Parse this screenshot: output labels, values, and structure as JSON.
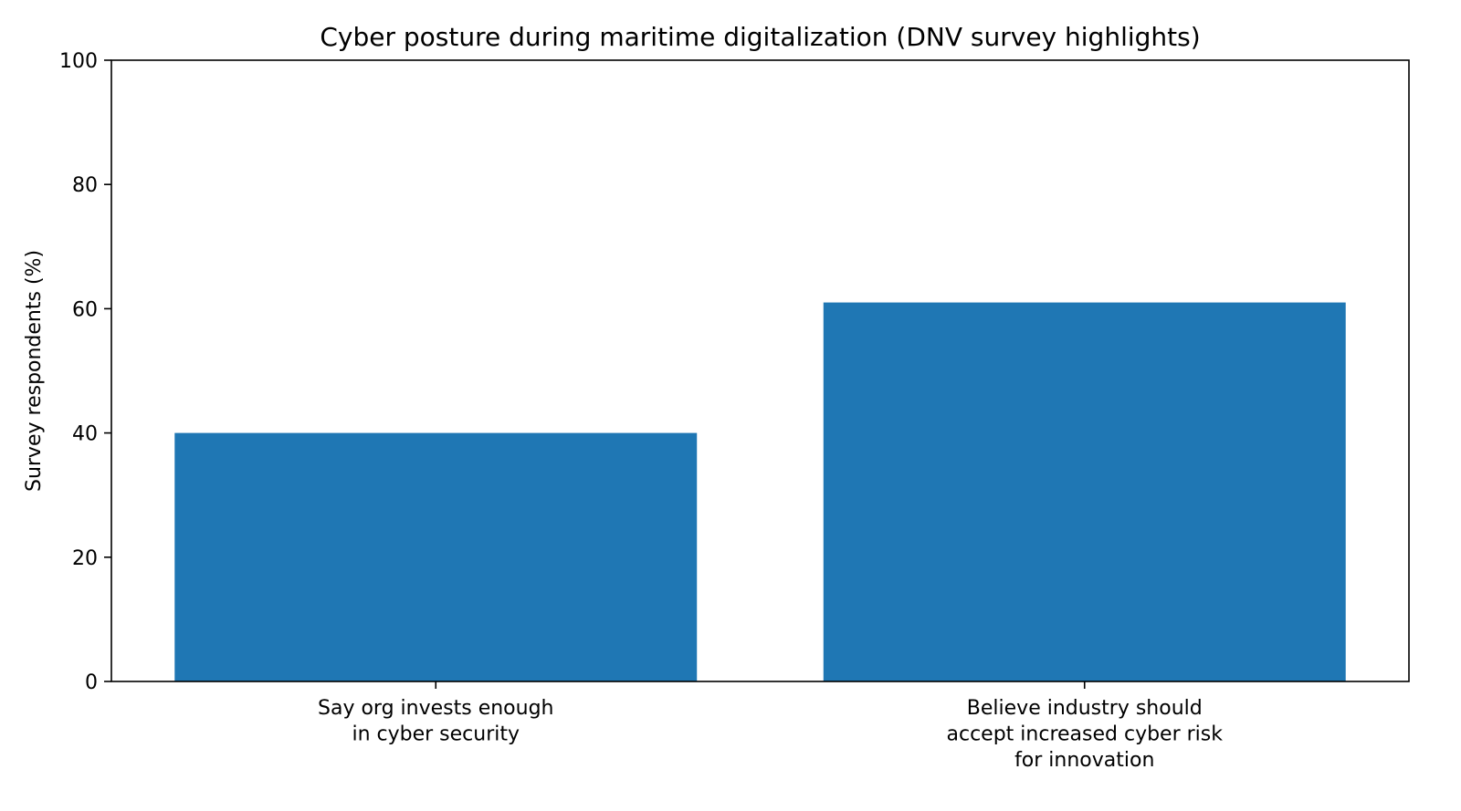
{
  "chart_data": {
    "type": "bar",
    "title": "Cyber posture during maritime digitalization (DNV survey highlights)",
    "xlabel": "",
    "ylabel": "Survey respondents (%)",
    "ylim": [
      0,
      100
    ],
    "yticks": [
      0,
      20,
      40,
      60,
      80,
      100
    ],
    "categories": [
      [
        "Say org invests enough",
        "in cyber security"
      ],
      [
        "Believe industry should",
        "accept increased cyber risk",
        "for innovation"
      ]
    ],
    "values": [
      40,
      61
    ],
    "bar_color": "#1f77b4",
    "grid": false,
    "legend": "none"
  }
}
